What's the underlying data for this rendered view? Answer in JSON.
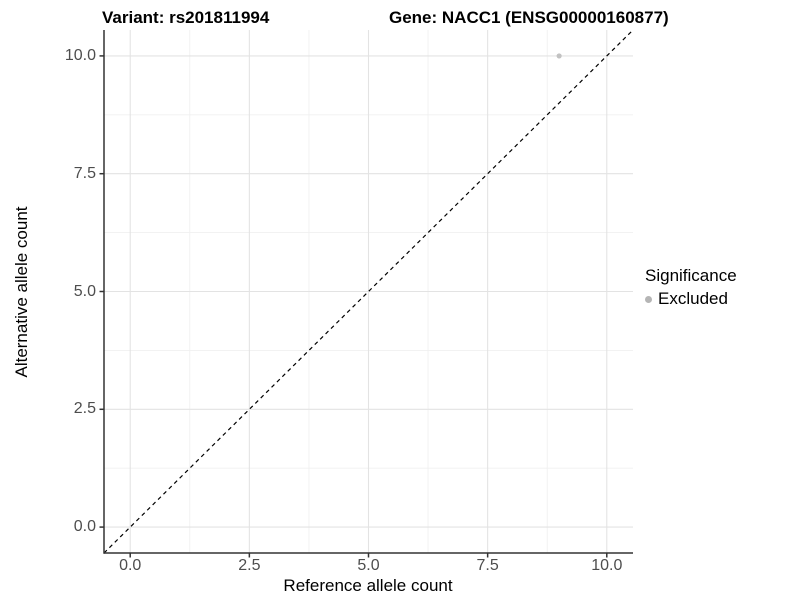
{
  "titles": {
    "variant": "Variant: rs201811994",
    "gene": "Gene: NACC1 (ENSG00000160877)"
  },
  "axes": {
    "x_label": "Reference allele count",
    "y_label": "Alternative allele count"
  },
  "legend": {
    "title": "Significance",
    "entries": [
      {
        "label": "Excluded",
        "color": "#b5b5b5"
      }
    ]
  },
  "colors": {
    "background": "#ffffff",
    "point": "#c2c2c2",
    "legend_key": "#b5b5b5",
    "grid_major": "#e3e3e3",
    "grid_minor": "#f0f0f0",
    "axis_line": "#333333",
    "tick_mark": "#333333",
    "tick_text": "#4d4d4d",
    "dashed_line": "#000000"
  },
  "chart_data": {
    "type": "scatter",
    "title": "Variant: rs201811994 / Gene: NACC1 (ENSG00000160877)",
    "xlabel": "Reference allele count",
    "ylabel": "Alternative allele count",
    "xlim": [
      -0.55,
      10.55
    ],
    "ylim": [
      -0.55,
      10.55
    ],
    "x_tick_labels": [
      "0.0",
      "2.5",
      "5.0",
      "7.5",
      "10.0"
    ],
    "x_tick_values": [
      0,
      2.5,
      5,
      7.5,
      10
    ],
    "y_tick_labels": [
      "0.0",
      "2.5",
      "5.0",
      "7.5",
      "10.0"
    ],
    "y_tick_values": [
      0,
      2.5,
      5,
      7.5,
      10
    ],
    "minor_tick_values": [
      1.25,
      3.75,
      6.25,
      8.75
    ],
    "grid": true,
    "legend_position": "right",
    "legend_title": "Significance",
    "series": [
      {
        "name": "Excluded",
        "color": "#c2c2c2",
        "marker": "circle",
        "points": [
          [
            9,
            10
          ]
        ]
      }
    ],
    "reference_line": {
      "kind": "identity y=x",
      "style": "dashed",
      "color": "#000000",
      "from": [
        -0.55,
        -0.55
      ],
      "to": [
        10.55,
        10.55
      ]
    }
  }
}
